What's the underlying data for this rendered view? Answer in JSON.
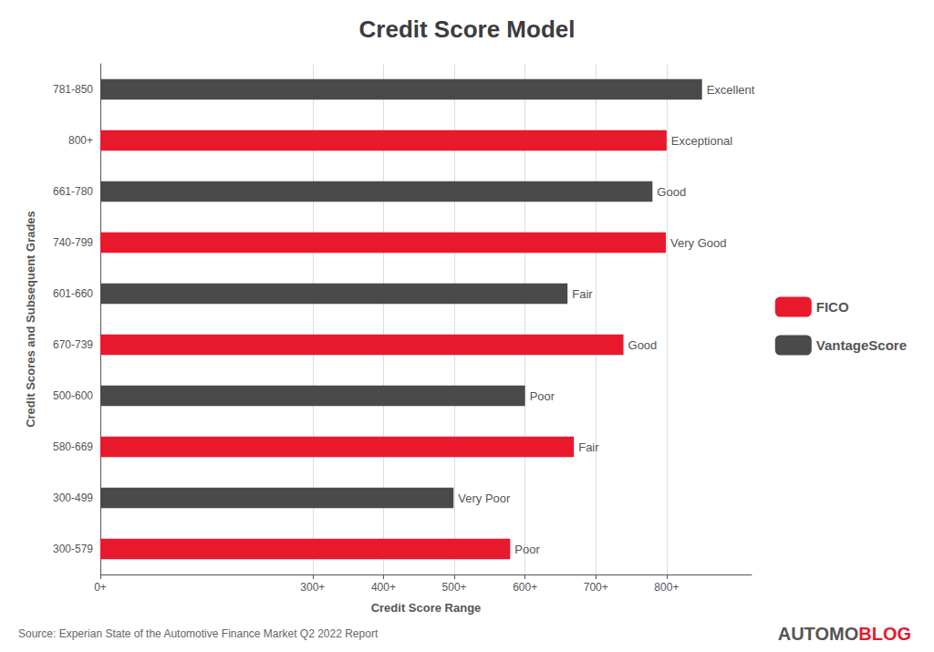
{
  "chart_data": {
    "type": "bar",
    "orientation": "horizontal",
    "title": "Credit Score Model",
    "xlabel": "Credit Score Range",
    "ylabel": "Credit Scores and Subsequent Grades",
    "source": "Source: Experian State of the Automotive Finance Market Q2 2022 Report",
    "branding": [
      {
        "text": "AUTOMO",
        "color": "#555555"
      },
      {
        "text": "BLOG",
        "color": "#e8192c"
      }
    ],
    "categories": [
      "781-850",
      "800+",
      "661-780",
      "740-799",
      "601-660",
      "670-739",
      "500-600",
      "580-669",
      "300-499",
      "300-579"
    ],
    "series": [
      {
        "name": "FICO",
        "color": "#e8192c",
        "values": [
          null,
          800,
          null,
          799,
          null,
          739,
          null,
          669,
          null,
          579
        ]
      },
      {
        "name": "VantageScore",
        "color": "#4a4a4a",
        "values": [
          850,
          null,
          780,
          null,
          660,
          null,
          600,
          null,
          499,
          null
        ]
      }
    ],
    "annotations": [
      "Excellent",
      "Exceptional",
      "Good",
      "Very Good",
      "Fair",
      "Good",
      "Poor",
      "Fair",
      "Very Poor",
      "Poor"
    ],
    "xlim": [
      0,
      920
    ],
    "xticks": [
      {
        "value": 0,
        "label": "0+"
      },
      {
        "value": 300,
        "label": "300+"
      },
      {
        "value": 400,
        "label": "400+"
      },
      {
        "value": 500,
        "label": "500+"
      },
      {
        "value": 600,
        "label": "600+"
      },
      {
        "value": 700,
        "label": "700+"
      },
      {
        "value": 800,
        "label": "800+"
      }
    ],
    "grid": true,
    "legend": "right"
  }
}
